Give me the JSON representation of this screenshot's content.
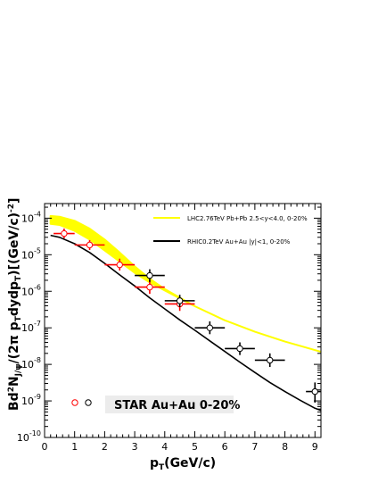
{
  "chart_data": {
    "type": "scatter",
    "xlabel": {
      "main": "p",
      "sub": "T",
      "rest": "(GeV/c)"
    },
    "ylabel": {
      "pre": "Bd",
      "sup1": "2",
      "mid1": "N",
      "sub1": "J/ψ",
      "mid2": "/(2π p",
      "sub2": "T",
      "mid3": "dydp",
      "sub3": "T",
      "mid4": ")[(GeV/c)",
      "sup2": "-2",
      "post": "]"
    },
    "xlim": [
      0,
      9.2
    ],
    "ylim_log10": [
      -10,
      -3.6
    ],
    "log_y": true,
    "x_ticks": [
      0,
      1,
      2,
      3,
      4,
      5,
      6,
      7,
      8,
      9
    ],
    "x_tick_labels": [
      "0",
      "1",
      "2",
      "3",
      "4",
      "5",
      "6",
      "7",
      "8",
      "9"
    ],
    "y_ticks_log10": [
      -10,
      -9,
      -8,
      -7,
      -6,
      -5,
      -4
    ],
    "y_tick_labels": [
      {
        "base": "10",
        "exp": "-10"
      },
      {
        "base": "10",
        "exp": "-9"
      },
      {
        "base": "10",
        "exp": "-8"
      },
      {
        "base": "10",
        "exp": "-7"
      },
      {
        "base": "10",
        "exp": "-6"
      },
      {
        "base": "10",
        "exp": "-5"
      },
      {
        "base": "10",
        "exp": "-4"
      }
    ],
    "series": [
      {
        "name": "LHC2.76TeV Pb+Pb 2.5<y<4.0, 0-20%",
        "kind": "band",
        "color": "#ffff00",
        "x": [
          0.2,
          0.5,
          1.0,
          1.5,
          2.0,
          2.5,
          3.0,
          3.5,
          4.0,
          5.0,
          6.0,
          7.0,
          8.0,
          9.2
        ],
        "lower": [
          7e-05,
          6.5e-05,
          4.5e-05,
          2.6e-05,
          1.3e-05,
          6.5e-06,
          3.2e-06,
          1.75e-06,
          1.05e-06,
          3.9e-07,
          1.6e-07,
          7.8e-08,
          4.2e-08,
          2.2e-08
        ],
        "upper": [
          0.000115,
          0.00011,
          8.5e-05,
          5.2e-05,
          2.6e-05,
          1.15e-05,
          4.8e-06,
          2.2e-06,
          1.15e-06,
          3.9e-07,
          1.6e-07,
          7.8e-08,
          4.2e-08,
          2.2e-08
        ]
      },
      {
        "name": "RHIC0.2TeV Au+Au |y|<1, 0-20%",
        "kind": "line",
        "color": "#000000",
        "x": [
          0.2,
          0.5,
          1.0,
          1.5,
          2.0,
          2.5,
          3.0,
          3.5,
          4.0,
          4.5,
          5.0,
          5.5,
          6.0,
          6.5,
          7.0,
          7.5,
          8.0,
          8.5,
          9.0,
          9.2
        ],
        "y": [
          3.4e-05,
          3e-05,
          2e-05,
          1.15e-05,
          5.8e-06,
          2.8e-06,
          1.4e-06,
          6.6e-07,
          3.3e-07,
          1.65e-07,
          8.6e-08,
          4.4e-08,
          2.25e-08,
          1.15e-08,
          6e-09,
          3.2e-09,
          1.8e-09,
          1.05e-09,
          6.3e-10,
          5.5e-10
        ]
      },
      {
        "name": "STAR red",
        "kind": "points",
        "color": "#ff0000",
        "points": [
          {
            "x": 0.65,
            "y": 3.8e-05,
            "xerr": 0.35,
            "ylo": 2.8e-05,
            "yhi": 5.2e-05
          },
          {
            "x": 1.5,
            "y": 1.85e-05,
            "xerr": 0.5,
            "ylo": 1.35e-05,
            "yhi": 2.5e-05
          },
          {
            "x": 2.5,
            "y": 5.3e-06,
            "xerr": 0.5,
            "ylo": 3.7e-06,
            "yhi": 7.8e-06
          },
          {
            "x": 3.5,
            "y": 1.3e-06,
            "xerr": 0.5,
            "ylo": 8.5e-07,
            "yhi": 2e-06
          },
          {
            "x": 4.5,
            "y": 4.5e-07,
            "xerr": 0.5,
            "ylo": 2.9e-07,
            "yhi": 7e-07
          }
        ]
      },
      {
        "name": "STAR black",
        "kind": "points",
        "color": "#000000",
        "points": [
          {
            "x": 3.5,
            "y": 2.7e-06,
            "xerr": 0.5,
            "ylo": 1.8e-06,
            "yhi": 4e-06
          },
          {
            "x": 4.5,
            "y": 5.5e-07,
            "xerr": 0.5,
            "ylo": 3.7e-07,
            "yhi": 8e-07
          },
          {
            "x": 5.5,
            "y": 1e-07,
            "xerr": 0.5,
            "ylo": 6.7e-08,
            "yhi": 1.5e-07
          },
          {
            "x": 6.5,
            "y": 2.7e-08,
            "xerr": 0.5,
            "ylo": 1.8e-08,
            "yhi": 4e-08
          },
          {
            "x": 7.5,
            "y": 1.3e-08,
            "xerr": 0.5,
            "ylo": 8.5e-09,
            "yhi": 2e-08
          },
          {
            "x": 9.0,
            "y": 1.8e-09,
            "xerr": 0.3,
            "ylo": 9e-10,
            "yhi": 3.2e-09
          }
        ]
      }
    ],
    "legend": {
      "placement": "top-right",
      "entries": [
        {
          "label": "LHC2.76TeV Pb+Pb 2.5<y<4.0, 0-20%",
          "color": "#ffff00"
        },
        {
          "label": "RHIC0.2TeV Au+Au |y|<1, 0-20%",
          "color": "#000000"
        }
      ]
    },
    "annotation": {
      "text": "STAR Au+Au 0-20%",
      "box_color": "#ececec",
      "marker_colors": [
        "#ff0000",
        "#000000"
      ]
    }
  }
}
